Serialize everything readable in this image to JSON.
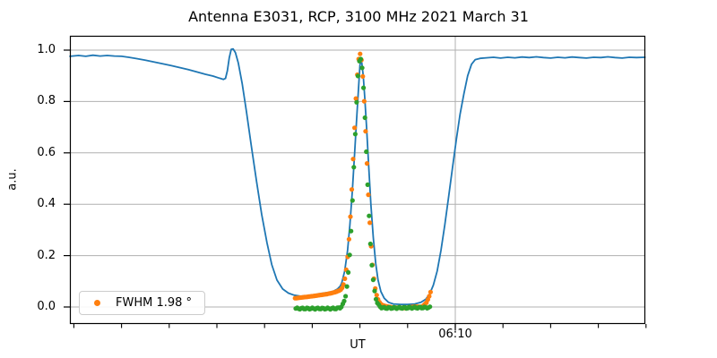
{
  "title": "Antenna E3031, RCP, 3100 MHz 2021 March 31",
  "axes": {
    "ylabel": "a.u.",
    "xlabel": "UT",
    "x_major_tick_label": "06:10",
    "y_ticks": [
      {
        "value": 1.0,
        "label": "1.0"
      },
      {
        "value": 0.8,
        "label": "0.8"
      },
      {
        "value": 0.6,
        "label": "0.6"
      },
      {
        "value": 0.4,
        "label": "0.4"
      },
      {
        "value": 0.2,
        "label": "0.2"
      },
      {
        "value": 0.0,
        "label": "0.0"
      }
    ]
  },
  "legend": {
    "label": "FWHM 1.98 °",
    "marker_color": "#ff7f0e"
  },
  "colors": {
    "line": "#1f77b4",
    "scan_dots": "#ff7f0e",
    "subtracted_dots": "#2ca02c",
    "grid": "#b0b0b0",
    "spine": "#000000",
    "legend_border": "#cccccc"
  },
  "chart_data": {
    "type": "line",
    "title": "Antenna E3031, RCP, 3100 MHz 2021 March 31",
    "xlabel": "UT",
    "ylabel": "a.u.",
    "x_unit": "minutes relative to 06:10 UT",
    "xlim": [
      -8.08,
      3.98
    ],
    "ylim": [
      -0.07,
      1.06
    ],
    "grid": true,
    "x_major_ticks": [
      {
        "at_minutes": 0,
        "label": "06:10"
      }
    ],
    "x_minor_ticks_minutes": [
      -8,
      -7,
      -6,
      -5,
      -4,
      -3,
      -2,
      -1,
      0,
      1,
      2,
      3,
      4
    ],
    "y_tick_values": [
      0.0,
      0.2,
      0.4,
      0.6,
      0.8,
      1.0
    ],
    "legend": {
      "label": "FWHM 1.98°",
      "location": "lower left"
    },
    "series": [
      {
        "name": "measured drift scan",
        "type": "line",
        "color": "#1f77b4",
        "points": [
          [
            -8.08,
            0.976
          ],
          [
            -7.9,
            0.979
          ],
          [
            -7.75,
            0.976
          ],
          [
            -7.6,
            0.98
          ],
          [
            -7.45,
            0.977
          ],
          [
            -7.3,
            0.979
          ],
          [
            -7.15,
            0.977
          ],
          [
            -7.0,
            0.976
          ],
          [
            -6.85,
            0.972
          ],
          [
            -6.68,
            0.967
          ],
          [
            -6.5,
            0.961
          ],
          [
            -6.32,
            0.954
          ],
          [
            -6.14,
            0.947
          ],
          [
            -5.96,
            0.94
          ],
          [
            -5.78,
            0.932
          ],
          [
            -5.6,
            0.924
          ],
          [
            -5.42,
            0.915
          ],
          [
            -5.24,
            0.906
          ],
          [
            -5.08,
            0.899
          ],
          [
            -4.95,
            0.891
          ],
          [
            -4.86,
            0.886
          ],
          [
            -4.82,
            0.89
          ],
          [
            -4.78,
            0.92
          ],
          [
            -4.74,
            0.97
          ],
          [
            -4.7,
            1.003
          ],
          [
            -4.66,
            1.005
          ],
          [
            -4.61,
            0.99
          ],
          [
            -4.55,
            0.95
          ],
          [
            -4.47,
            0.87
          ],
          [
            -4.38,
            0.76
          ],
          [
            -4.28,
            0.63
          ],
          [
            -4.17,
            0.49
          ],
          [
            -4.06,
            0.36
          ],
          [
            -3.95,
            0.25
          ],
          [
            -3.85,
            0.165
          ],
          [
            -3.74,
            0.105
          ],
          [
            -3.62,
            0.07
          ],
          [
            -3.5,
            0.054
          ],
          [
            -3.38,
            0.046
          ],
          [
            -3.25,
            0.042
          ],
          [
            -3.1,
            0.044
          ],
          [
            -2.95,
            0.048
          ],
          [
            -2.8,
            0.053
          ],
          [
            -2.65,
            0.057
          ],
          [
            -2.55,
            0.062
          ],
          [
            -2.47,
            0.07
          ],
          [
            -2.41,
            0.082
          ],
          [
            -2.38,
            0.095
          ],
          [
            -2.32,
            0.14
          ],
          [
            -2.26,
            0.22
          ],
          [
            -2.21,
            0.32
          ],
          [
            -2.16,
            0.45
          ],
          [
            -2.11,
            0.6
          ],
          [
            -2.07,
            0.73
          ],
          [
            -2.03,
            0.85
          ],
          [
            -2.0,
            0.94
          ],
          [
            -1.98,
            0.967
          ],
          [
            -1.96,
            0.95
          ],
          [
            -1.93,
            0.9
          ],
          [
            -1.9,
            0.82
          ],
          [
            -1.86,
            0.7
          ],
          [
            -1.82,
            0.56
          ],
          [
            -1.77,
            0.4
          ],
          [
            -1.72,
            0.27
          ],
          [
            -1.67,
            0.17
          ],
          [
            -1.62,
            0.105
          ],
          [
            -1.56,
            0.06
          ],
          [
            -1.49,
            0.034
          ],
          [
            -1.4,
            0.018
          ],
          [
            -1.3,
            0.012
          ],
          [
            -1.15,
            0.01
          ],
          [
            -1.0,
            0.01
          ],
          [
            -0.85,
            0.012
          ],
          [
            -0.72,
            0.018
          ],
          [
            -0.62,
            0.03
          ],
          [
            -0.54,
            0.05
          ],
          [
            -0.46,
            0.085
          ],
          [
            -0.38,
            0.14
          ],
          [
            -0.3,
            0.22
          ],
          [
            -0.22,
            0.32
          ],
          [
            -0.14,
            0.43
          ],
          [
            -0.06,
            0.54
          ],
          [
            0.02,
            0.65
          ],
          [
            0.1,
            0.75
          ],
          [
            0.18,
            0.83
          ],
          [
            0.26,
            0.9
          ],
          [
            0.34,
            0.945
          ],
          [
            0.42,
            0.963
          ],
          [
            0.52,
            0.968
          ],
          [
            0.65,
            0.97
          ],
          [
            0.8,
            0.972
          ],
          [
            0.95,
            0.969
          ],
          [
            1.1,
            0.972
          ],
          [
            1.25,
            0.97
          ],
          [
            1.4,
            0.973
          ],
          [
            1.55,
            0.971
          ],
          [
            1.7,
            0.974
          ],
          [
            1.85,
            0.971
          ],
          [
            2.0,
            0.969
          ],
          [
            2.15,
            0.972
          ],
          [
            2.3,
            0.97
          ],
          [
            2.45,
            0.973
          ],
          [
            2.6,
            0.971
          ],
          [
            2.75,
            0.969
          ],
          [
            2.9,
            0.972
          ],
          [
            3.05,
            0.971
          ],
          [
            3.2,
            0.974
          ],
          [
            3.35,
            0.971
          ],
          [
            3.5,
            0.969
          ],
          [
            3.65,
            0.972
          ],
          [
            3.8,
            0.971
          ],
          [
            3.98,
            0.972
          ]
        ]
      },
      {
        "name": "scan samples in fit window",
        "type": "scatter",
        "color": "#ff7f0e",
        "marker_radius": 2.6,
        "model": {
          "window_minutes": [
            -3.36,
            -0.49
          ],
          "step_minutes": 0.029,
          "gaussian": {
            "center": -1.997,
            "sigma": 0.135,
            "amplitude": 0.95
          },
          "baseline_points": [
            [
              -3.36,
              0.034
            ],
            [
              -3.0,
              0.042
            ],
            [
              -2.7,
              0.05
            ],
            [
              -2.45,
              0.06
            ],
            [
              -2.2,
              0.045
            ],
            [
              -1.99,
              0.035
            ],
            [
              -1.78,
              0.02
            ],
            [
              -1.55,
              0.006
            ],
            [
              -1.3,
              -0.002
            ],
            [
              -1.05,
              -0.004
            ],
            [
              -0.85,
              0.002
            ],
            [
              -0.7,
              0.0
            ],
            [
              -0.6,
              0.018
            ],
            [
              -0.54,
              0.045
            ],
            [
              -0.49,
              0.075
            ]
          ],
          "noise_amplitude": 0.0
        }
      },
      {
        "name": "baseline-subtracted samples",
        "type": "scatter",
        "color": "#2ca02c",
        "marker_radius": 2.6,
        "model": {
          "window_minutes": [
            -3.3455,
            -0.52
          ],
          "step_minutes": 0.029,
          "gaussian": {
            "center": -1.99,
            "sigma": 0.128,
            "amplitude": 0.975
          },
          "baseline_points": [
            [
              -3.35,
              -0.006
            ],
            [
              -2.4,
              -0.006
            ],
            [
              -1.0,
              -0.003
            ],
            [
              -0.52,
              -0.002
            ]
          ],
          "noise_amplitude": 0.003
        }
      }
    ]
  }
}
